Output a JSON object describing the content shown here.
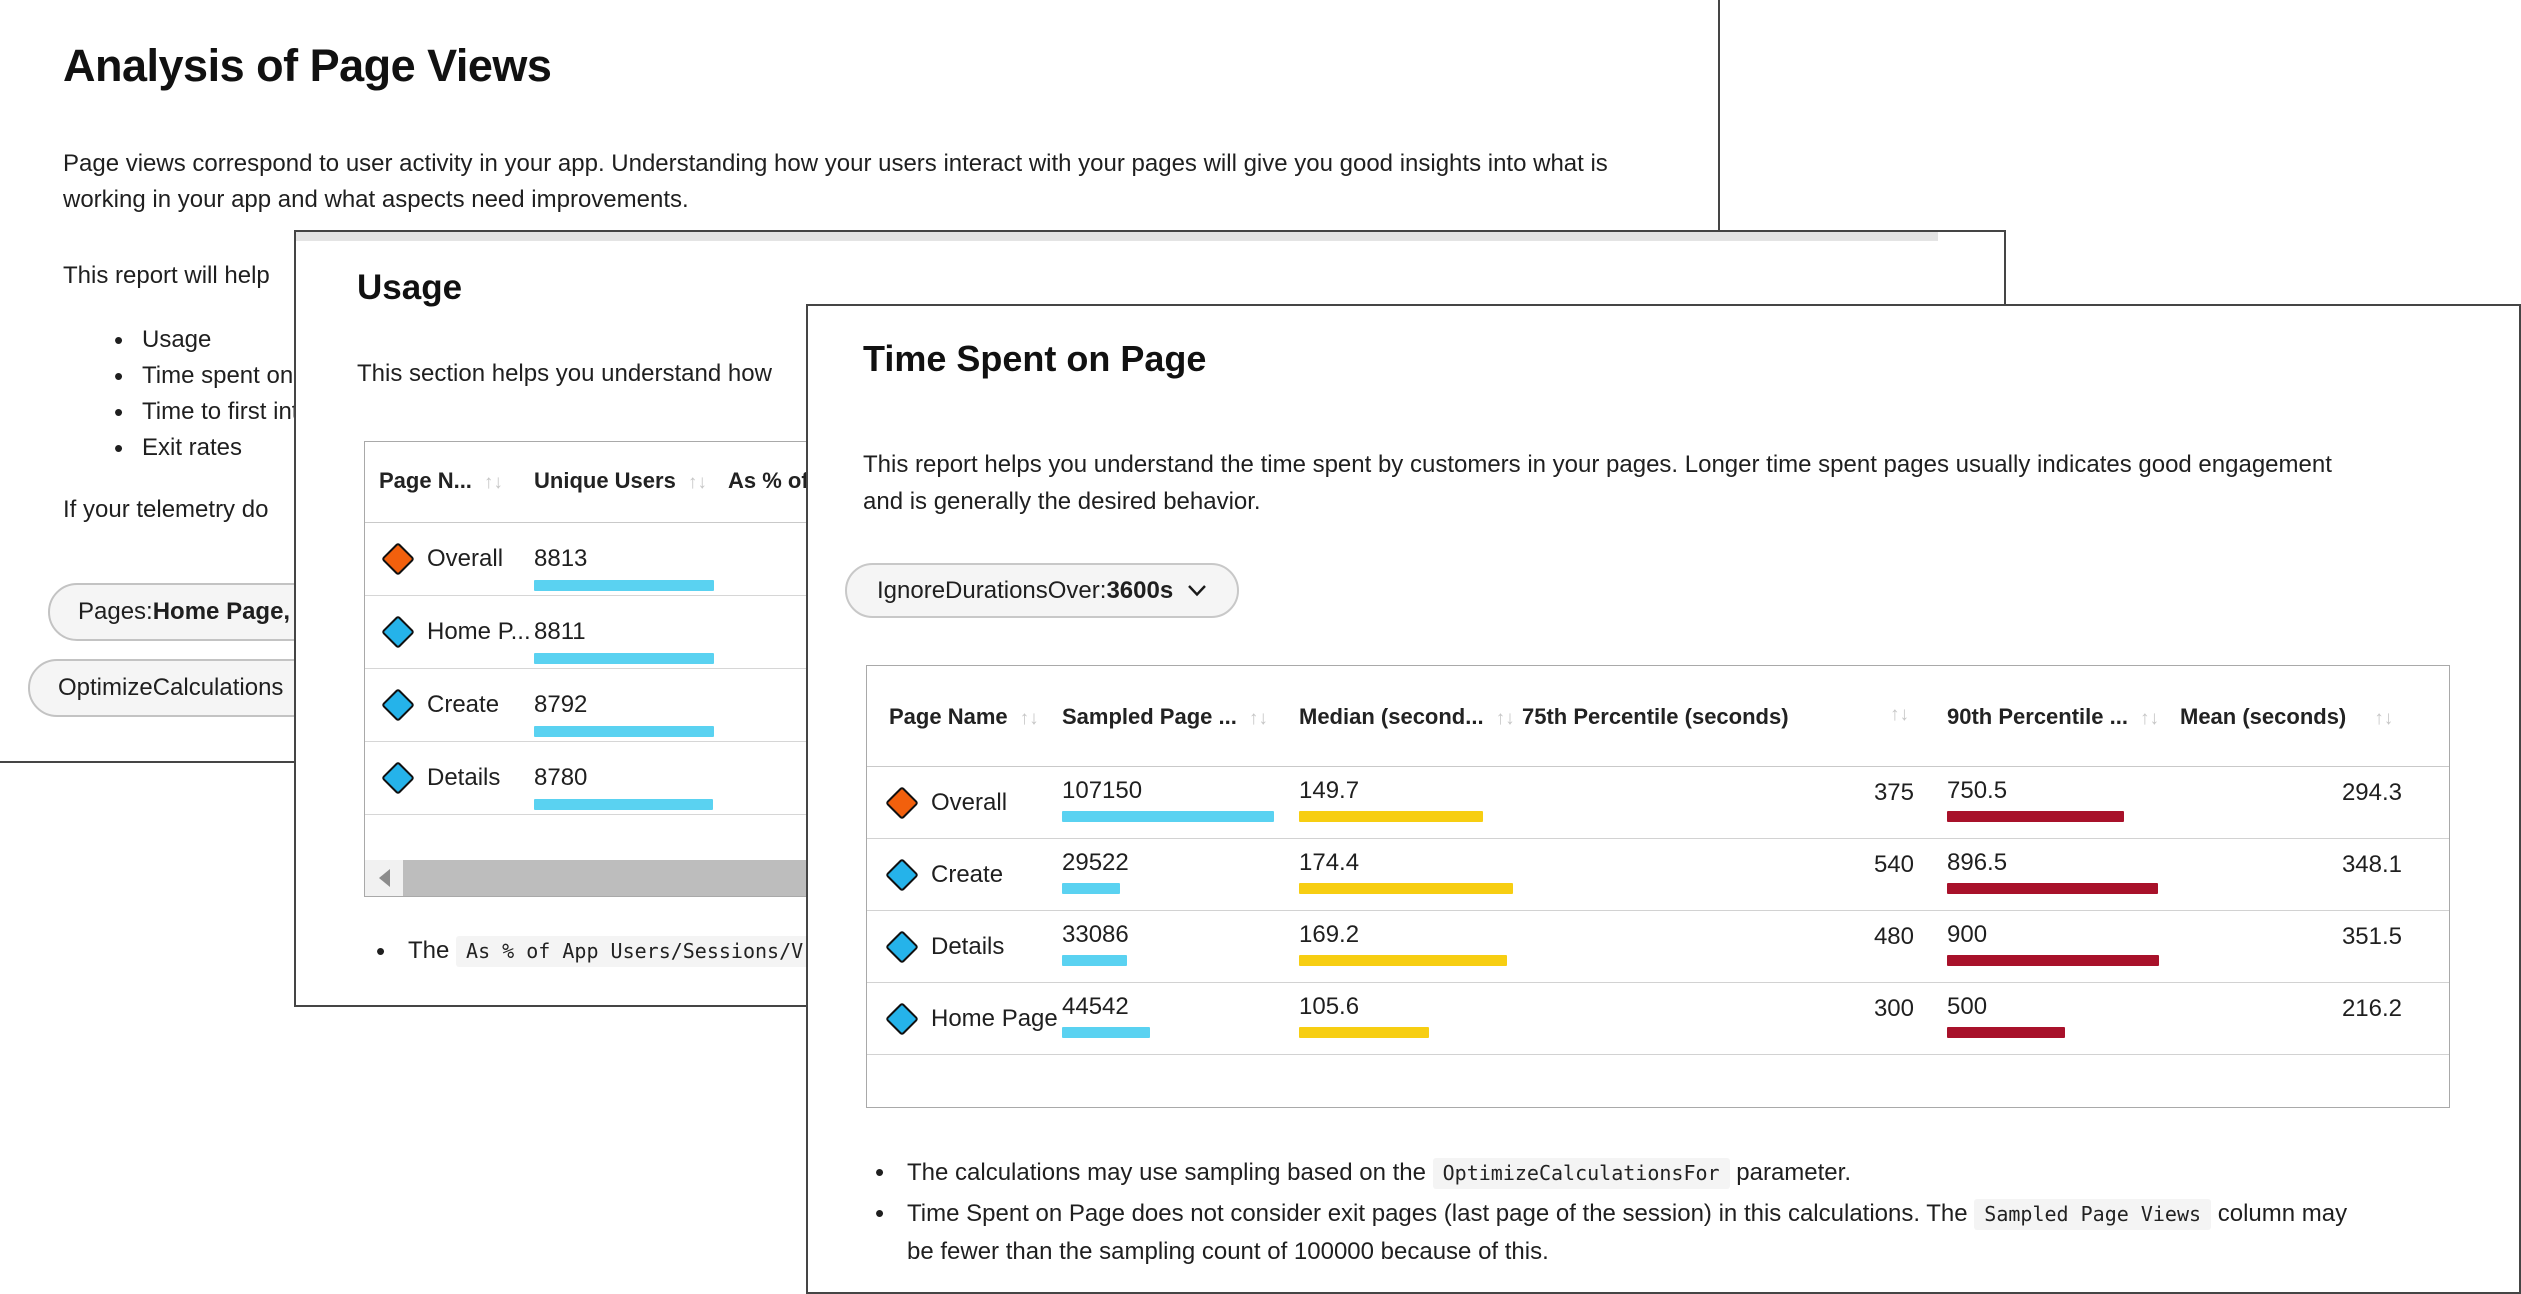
{
  "colors": {
    "bar_cyan": "#5ad2f1",
    "bar_yellow": "#f7ce12",
    "bar_red": "#a8112a",
    "marker_orange": "#f2600d",
    "marker_blue": "#25b3ea"
  },
  "window_back": {
    "title": "Analysis of Page Views",
    "intro": "Page views correspond to user activity in your app. Understanding how your users interact with your pages will give you good insights into what is working in your app and what aspects need improvements.",
    "report_line": "This report will help",
    "bullets": [
      "Usage",
      "Time spent on p",
      "Time to first int",
      "Exit rates"
    ],
    "telemetry_line": "If your telemetry do",
    "pill_pages_label": "Pages: ",
    "pill_pages_value": "Home Page, D",
    "pill_optimize": "OptimizeCalculations"
  },
  "window_usage": {
    "title": "Usage",
    "intro": "This section helps you understand how",
    "table": {
      "col_page": "Page N...",
      "col_users": "Unique Users",
      "col_pct": "As % of",
      "sort_glyph": "↑↓",
      "rows": [
        {
          "page": "Overall",
          "users": "8813"
        },
        {
          "page": "Home P...",
          "users": "8811"
        },
        {
          "page": "Create",
          "users": "8792"
        },
        {
          "page": "Details",
          "users": "8780"
        }
      ]
    },
    "note_prefix": "The ",
    "note_code": "As % of App Users/Sessions/V"
  },
  "window_time_spent": {
    "title": "Time Spent on Page",
    "intro": "This report helps you understand the time spent by customers in your pages. Longer time spent pages usually indicates good engagement and is generally the desired behavior.",
    "filter_label": "IgnoreDurationsOver: ",
    "filter_value": "3600s",
    "table": {
      "col_page": "Page Name",
      "col_sampled": "Sampled Page ...",
      "col_median": "Median (second...",
      "col_p75": "75th Percentile (seconds)",
      "col_p90": "90th Percentile ...",
      "col_mean": "Mean (seconds)",
      "sort_glyph": "↑↓",
      "rows": [
        {
          "page": "Overall",
          "sampled": "107150",
          "median": "149.7",
          "p75": "375",
          "p90": "750.5",
          "mean": "294.3"
        },
        {
          "page": "Create",
          "sampled": "29522",
          "median": "174.4",
          "p75": "540",
          "p90": "896.5",
          "mean": "348.1"
        },
        {
          "page": "Details",
          "sampled": "33086",
          "median": "169.2",
          "p75": "480",
          "p90": "900",
          "mean": "351.5"
        },
        {
          "page": "Home Page",
          "sampled": "44542",
          "median": "105.6",
          "p75": "300",
          "p90": "500",
          "mean": "216.2"
        }
      ]
    },
    "note1_prefix": "The calculations may use sampling based on the ",
    "note1_code": "OptimizeCalculationsFor",
    "note1_suffix": " parameter.",
    "note2_prefix": "Time Spent on Page does not consider exit pages (last page of the session) in this calculations. The ",
    "note2_code": "Sampled Page Views",
    "note2_suffix": " column may be fewer than the sampling count of 100000 because of this."
  }
}
